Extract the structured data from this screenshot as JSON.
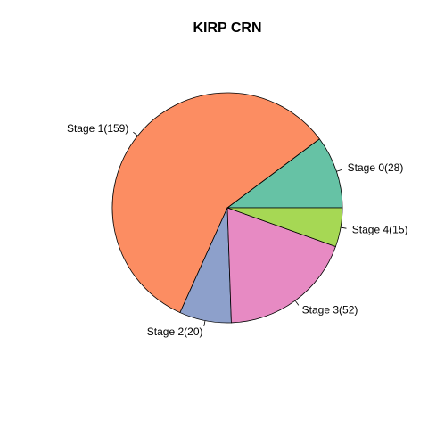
{
  "chart_data": {
    "type": "pie",
    "title": "KIRP CRN",
    "start_angle_deg": 0,
    "direction": "counterclockwise",
    "slices": [
      {
        "label": "Stage 0(28)",
        "value": 28,
        "color": "#66C2A5"
      },
      {
        "label": "Stage 1(159)",
        "value": 159,
        "color": "#FC8D62"
      },
      {
        "label": "Stage 2(20)",
        "value": 20,
        "color": "#8DA0CB"
      },
      {
        "label": "Stage 3(52)",
        "value": 52,
        "color": "#E78AC3"
      },
      {
        "label": "Stage 4(15)",
        "value": 15,
        "color": "#A6D854"
      }
    ]
  }
}
